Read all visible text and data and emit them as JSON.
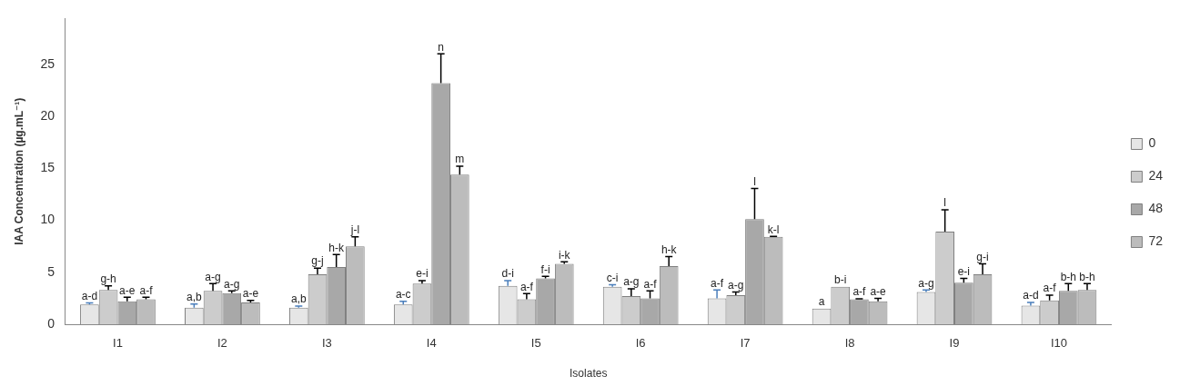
{
  "chart_data": {
    "type": "bar",
    "xlabel": "Isolates",
    "ylabel": "IAA Concentration (µg.mL⁻¹)",
    "categories": [
      "I1",
      "I2",
      "I3",
      "I4",
      "I5",
      "I6",
      "I7",
      "I8",
      "I9",
      "I10"
    ],
    "ylim": [
      0,
      29.4
    ],
    "yticks": [
      0,
      5,
      10,
      15,
      20,
      25
    ],
    "grid": false,
    "legend": "right",
    "series": [
      {
        "name": "0",
        "color": "#e6e6e6",
        "values": [
          1.9,
          1.6,
          1.6,
          1.9,
          3.7,
          3.6,
          2.5,
          1.5,
          3.1,
          1.8
        ],
        "errors": [
          0.15,
          0.35,
          0.15,
          0.3,
          0.5,
          0.2,
          0.8,
          null,
          0.2,
          0.3
        ],
        "value_labels": [
          "a-d",
          "a,b",
          "a,b",
          "a-c",
          "d-i",
          "c-i",
          "a-f",
          "a",
          "a-g",
          "a-d"
        ]
      },
      {
        "name": "24",
        "color": "#cccccc",
        "values": [
          3.3,
          3.2,
          4.8,
          3.9,
          2.4,
          2.7,
          2.8,
          3.6,
          8.9,
          2.3
        ],
        "errors": [
          0.4,
          0.7,
          0.6,
          0.3,
          0.55,
          0.7,
          0.3,
          null,
          2.1,
          0.5
        ],
        "value_labels": [
          "g-h",
          "a-g",
          "g-j",
          "e-i",
          "a-f",
          "a-g",
          "a-g",
          "b-i",
          "l",
          "a-f"
        ]
      },
      {
        "name": "48",
        "color": "#a8a8a8",
        "values": [
          2.2,
          3.0,
          5.5,
          23.2,
          4.4,
          2.5,
          10.1,
          2.4,
          4.0,
          3.2
        ],
        "errors": [
          0.4,
          0.2,
          1.2,
          2.8,
          0.2,
          0.7,
          2.95,
          0.05,
          0.4,
          0.7
        ],
        "value_labels": [
          "a-e",
          "a-g",
          "h-k",
          "n",
          "f-i",
          "a-f",
          "l",
          "a-f",
          "e-i",
          "b-h"
        ]
      },
      {
        "name": "72",
        "color": "#bcbcbc",
        "values": [
          2.4,
          2.1,
          7.5,
          14.4,
          5.8,
          5.6,
          8.4,
          2.2,
          4.8,
          3.3
        ],
        "errors": [
          0.2,
          0.2,
          0.9,
          0.8,
          0.2,
          0.9,
          0.05,
          0.3,
          1.0,
          0.6
        ],
        "value_labels": [
          "a-f",
          "a-e",
          "j-l",
          "m",
          "i-k",
          "h-k",
          "k-l",
          "a-e",
          "g-i",
          "b-h"
        ]
      }
    ]
  }
}
